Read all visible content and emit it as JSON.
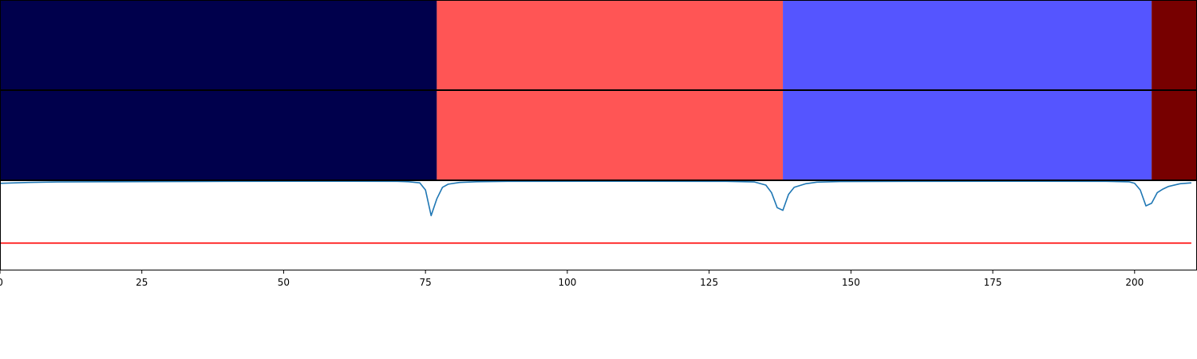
{
  "chart_data": [
    {
      "type": "heatmap",
      "panel": "segmentation-row-1",
      "segments": [
        {
          "start": 0,
          "end": 77,
          "color": "#00004c"
        },
        {
          "start": 77,
          "end": 138,
          "color": "#ff5555"
        },
        {
          "start": 138,
          "end": 203,
          "color": "#5555ff"
        },
        {
          "start": 203,
          "end": 211,
          "color": "#770000"
        }
      ],
      "xlim": [
        0,
        211
      ]
    },
    {
      "type": "heatmap",
      "panel": "segmentation-row-2",
      "segments": [
        {
          "start": 0,
          "end": 77,
          "color": "#00004c"
        },
        {
          "start": 77,
          "end": 138,
          "color": "#ff5555"
        },
        {
          "start": 138,
          "end": 203,
          "color": "#5555ff"
        },
        {
          "start": 203,
          "end": 211,
          "color": "#770000"
        }
      ],
      "xlim": [
        0,
        211
      ]
    },
    {
      "type": "line",
      "panel": "confidence-plot",
      "xlim": [
        0,
        211
      ],
      "ylim": [
        0,
        1
      ],
      "xticks": [
        0,
        25,
        50,
        75,
        100,
        125,
        150,
        175,
        200
      ],
      "grid": false,
      "series": [
        {
          "color": "#1f77b4",
          "points": [
            [
              0,
              0.975
            ],
            [
              5,
              0.985
            ],
            [
              10,
              0.99
            ],
            [
              20,
              0.993
            ],
            [
              30,
              0.995
            ],
            [
              40,
              0.997
            ],
            [
              60,
              0.998
            ],
            [
              70,
              0.997
            ],
            [
              72,
              0.993
            ],
            [
              74,
              0.98
            ],
            [
              75,
              0.9
            ],
            [
              76,
              0.61
            ],
            [
              77,
              0.8
            ],
            [
              78,
              0.93
            ],
            [
              79,
              0.965
            ],
            [
              81,
              0.985
            ],
            [
              84,
              0.993
            ],
            [
              90,
              0.997
            ],
            [
              110,
              0.998
            ],
            [
              128,
              0.997
            ],
            [
              133,
              0.99
            ],
            [
              135,
              0.955
            ],
            [
              136,
              0.87
            ],
            [
              137,
              0.7
            ],
            [
              138,
              0.67
            ],
            [
              139,
              0.85
            ],
            [
              140,
              0.93
            ],
            [
              142,
              0.97
            ],
            [
              144,
              0.988
            ],
            [
              148,
              0.995
            ],
            [
              160,
              0.997
            ],
            [
              180,
              0.998
            ],
            [
              195,
              0.997
            ],
            [
              199,
              0.992
            ],
            [
              200,
              0.975
            ],
            [
              201,
              0.9
            ],
            [
              202,
              0.72
            ],
            [
              203,
              0.75
            ],
            [
              204,
              0.87
            ],
            [
              205,
              0.91
            ],
            [
              206,
              0.94
            ],
            [
              208,
              0.97
            ],
            [
              210,
              0.98
            ]
          ]
        },
        {
          "color": "#ff0000",
          "points": [
            [
              0,
              0.3
            ],
            [
              210,
              0.3
            ]
          ]
        }
      ]
    }
  ]
}
